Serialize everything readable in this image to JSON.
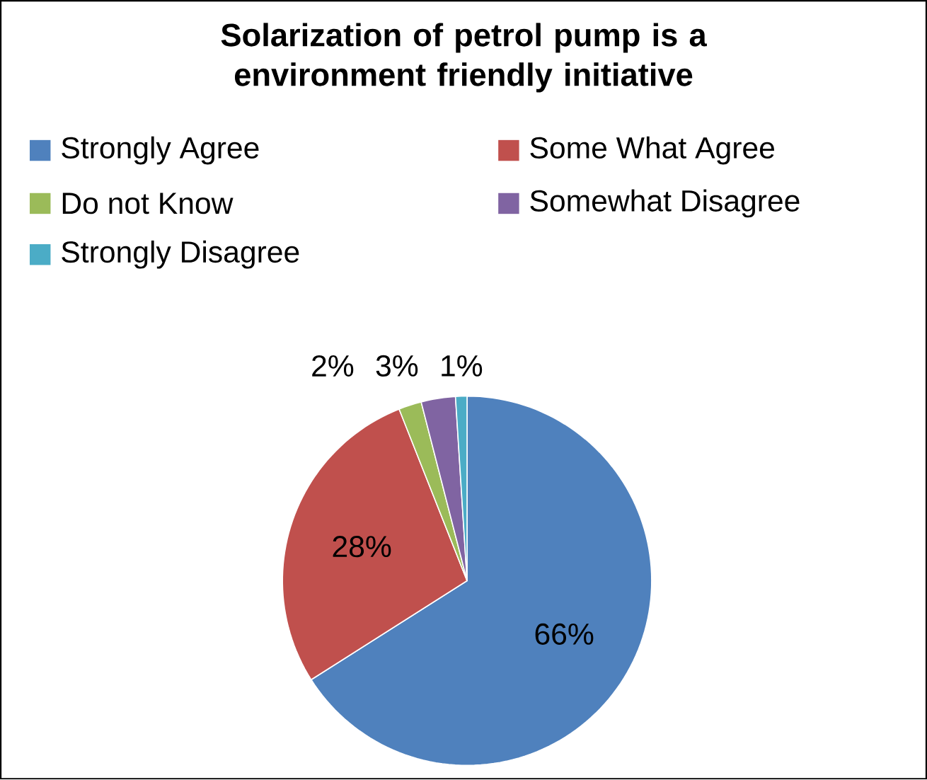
{
  "chart_data": {
    "type": "pie",
    "title": "Solarization of petrol pump is a environment friendly initiative",
    "categories": [
      "Strongly Agree",
      "Some What Agree",
      "Do not Know",
      "Somewhat Disagree",
      "Strongly Disagree"
    ],
    "values": [
      66,
      28,
      2,
      3,
      1
    ],
    "colors": [
      "#4f81bd",
      "#c0504d",
      "#9bbb59",
      "#8064a2",
      "#4bacc6"
    ],
    "value_labels": [
      "66%",
      "28%",
      "2%",
      "3%",
      "1%"
    ],
    "legend": "top"
  }
}
